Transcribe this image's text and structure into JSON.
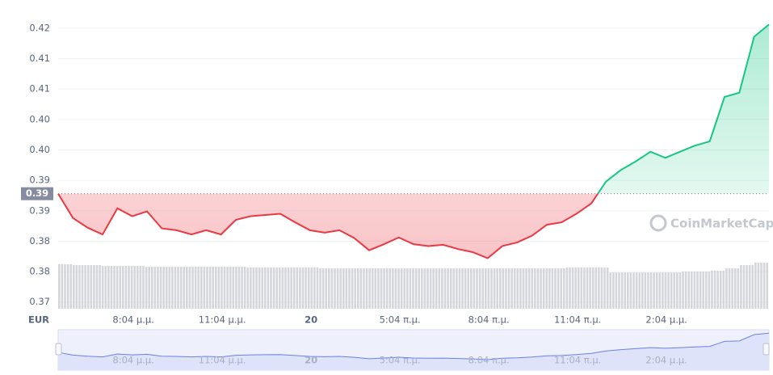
{
  "chart_data": {
    "type": "line",
    "currency": "EUR",
    "watermark": "CoinMarketCap",
    "x": [
      0,
      0.5,
      1,
      1.5,
      2,
      2.5,
      3,
      3.5,
      4,
      4.5,
      5,
      5.5,
      6,
      6.5,
      7,
      7.5,
      8,
      8.5,
      9,
      9.5,
      10,
      10.5,
      11,
      11.5,
      12,
      12.5,
      13,
      13.5,
      14,
      14.5,
      15,
      15.5,
      16,
      16.5,
      17,
      17.5,
      18,
      18.5,
      19,
      19.5,
      20,
      20.5,
      21,
      21.5,
      22,
      22.5,
      23,
      23.5,
      24
    ],
    "values": [
      0.3903,
      0.3863,
      0.3847,
      0.3836,
      0.3879,
      0.3866,
      0.3874,
      0.3846,
      0.3843,
      0.3836,
      0.3843,
      0.3836,
      0.386,
      0.3866,
      0.3868,
      0.387,
      0.3856,
      0.3843,
      0.3839,
      0.3843,
      0.383,
      0.381,
      0.382,
      0.3831,
      0.382,
      0.3817,
      0.3819,
      0.3812,
      0.3807,
      0.3797,
      0.3817,
      0.3823,
      0.3834,
      0.3852,
      0.3856,
      0.387,
      0.3887,
      0.3923,
      0.3942,
      0.3956,
      0.3972,
      0.3962,
      0.3972,
      0.3982,
      0.3989,
      0.4062,
      0.4069,
      0.4161,
      0.4181
    ],
    "volume": [
      55,
      54,
      54,
      53,
      53,
      53,
      52,
      52,
      52,
      52,
      52,
      52,
      52,
      51,
      51,
      51,
      51,
      51,
      50,
      50,
      50,
      50,
      50,
      50,
      50,
      50,
      50,
      50,
      50,
      50,
      50,
      50,
      50,
      50,
      50,
      51,
      51,
      51,
      45,
      45,
      45,
      45,
      45,
      46,
      46,
      47,
      50,
      54,
      57
    ],
    "reference": {
      "value": 0.3903,
      "label": "0.39"
    },
    "up_color": "#16c784",
    "down_color": "#ea3943",
    "xlim": [
      0,
      24
    ],
    "ylim": [
      0.3714,
      0.4208
    ],
    "xticks": [
      {
        "value": 2.54,
        "label": "8:04 μ.μ."
      },
      {
        "value": 5.54,
        "label": "11:04 μ.μ."
      },
      {
        "value": 8.54,
        "label": "20"
      },
      {
        "value": 11.54,
        "label": "5:04 π.μ."
      },
      {
        "value": 14.54,
        "label": "8:04 π.μ."
      },
      {
        "value": 17.54,
        "label": "11:04 π.μ."
      },
      {
        "value": 20.54,
        "label": "2:04 μ.μ."
      }
    ],
    "yticks": [
      {
        "value": 0.3725,
        "label": "0.37"
      },
      {
        "value": 0.3775,
        "label": "0.38"
      },
      {
        "value": 0.3825,
        "label": "0.38"
      },
      {
        "value": 0.3875,
        "label": "0.39"
      },
      {
        "value": 0.3925,
        "label": "0.39"
      },
      {
        "value": 0.3975,
        "label": "0.40"
      },
      {
        "value": 0.4025,
        "label": "0.40"
      },
      {
        "value": 0.4075,
        "label": "0.41"
      },
      {
        "value": 0.4125,
        "label": "0.41"
      },
      {
        "value": 0.4175,
        "label": "0.42"
      }
    ],
    "grid": true
  }
}
